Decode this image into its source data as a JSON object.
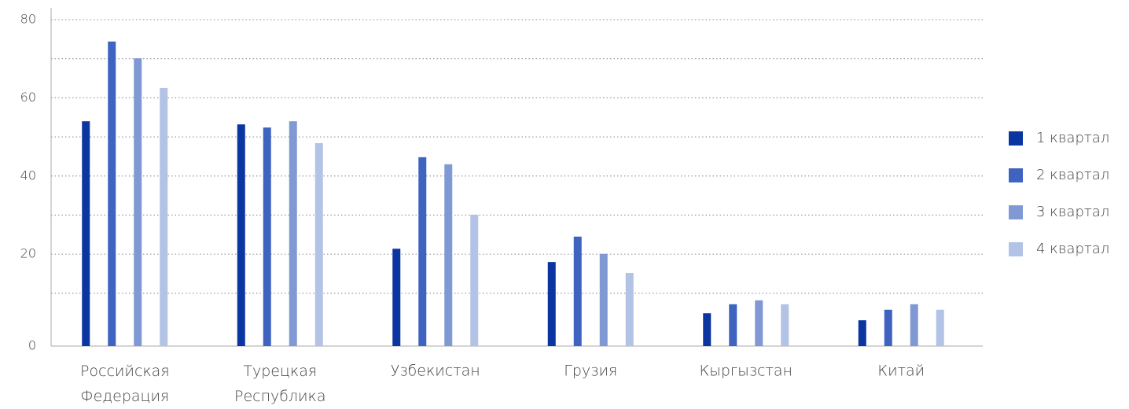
{
  "chart_data": {
    "type": "bar",
    "categories": [
      "Российская Федерация",
      "Турецкая Республика",
      "Узбекистан",
      "Грузия",
      "Кыргызстан",
      "Китай"
    ],
    "series": [
      {
        "name": "1 квартал",
        "color": "#0b35a0",
        "values": [
          54.0,
          53.2,
          21.4,
          18.0,
          4.9,
          3.1
        ]
      },
      {
        "name": "2 квартал",
        "color": "#3e63c0",
        "values": [
          74.4,
          52.4,
          44.8,
          24.5,
          7.2,
          5.8
        ]
      },
      {
        "name": "3 квартал",
        "color": "#8099d4",
        "values": [
          70.1,
          54.0,
          43.0,
          20.1,
          8.2,
          7.2
        ]
      },
      {
        "name": "4 квартал",
        "color": "#b3c3e6",
        "values": [
          62.5,
          48.4,
          30.1,
          15.2,
          7.2,
          5.8
        ]
      }
    ],
    "ylim": [
      -3.5,
      82
    ],
    "yticks": [
      0,
      20,
      40,
      60,
      80
    ],
    "minor_yticks": [
      10,
      30,
      50,
      70
    ],
    "grid": true,
    "legend": "right"
  }
}
